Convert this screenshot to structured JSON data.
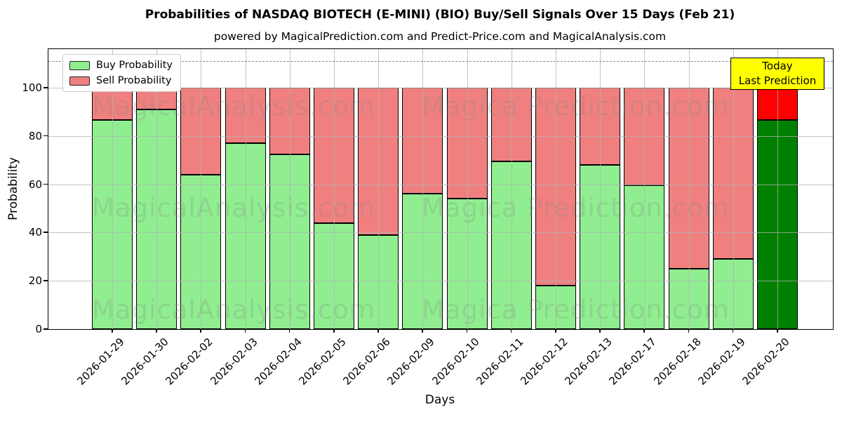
{
  "chart_data": {
    "type": "bar",
    "stacked": true,
    "title": "Probabilities of NASDAQ BIOTECH (E-MINI) (BIO) Buy/Sell Signals Over 15 Days (Feb 21)",
    "subtitle": "powered by MagicalPrediction.com and Predict-Price.com and MagicalAnalysis.com",
    "xlabel": "Days",
    "ylabel": "Probability",
    "categories": [
      "2026-01-29",
      "2026-01-30",
      "2026-02-02",
      "2026-02-03",
      "2026-02-04",
      "2026-02-05",
      "2026-02-06",
      "2026-02-09",
      "2026-02-10",
      "2026-02-11",
      "2026-02-12",
      "2026-02-13",
      "2026-02-17",
      "2026-02-18",
      "2026-02-19",
      "2026-02-20"
    ],
    "series": [
      {
        "name": "Buy Probability",
        "color": "#90ee90",
        "values": [
          86.5,
          91,
          64,
          77,
          72.5,
          44,
          39,
          56,
          54,
          69.5,
          18,
          68,
          59.5,
          25,
          29,
          86.5
        ]
      },
      {
        "name": "Sell Probability",
        "color": "#f08080",
        "values": [
          13.5,
          9,
          36,
          23,
          27.5,
          56,
          61,
          44,
          46,
          30.5,
          82,
          32,
          40.5,
          75,
          71,
          13.5
        ]
      }
    ],
    "today_index": 15,
    "today_colors": {
      "buy": "#008000",
      "sell": "#ff0000"
    },
    "ylim": [
      0,
      116
    ],
    "yticks": [
      0,
      20,
      40,
      60,
      80,
      100
    ],
    "dashed_line_y": 111,
    "grid": true,
    "legend_position": "upper left"
  },
  "legend": {
    "items": [
      {
        "label": "Buy Probability",
        "color": "#90ee90"
      },
      {
        "label": "Sell Probability",
        "color": "#f08080"
      }
    ]
  },
  "annotation": {
    "line1": "Today",
    "line2": "Last Prediction",
    "bg": "#ffff00"
  },
  "watermarks": {
    "left": "MagicalAnalysis.com",
    "right": "Magica Prediction.com"
  },
  "colors": {
    "buy_bar": "#90ee90",
    "sell_bar": "#f08080",
    "today_buy_bar": "#008000",
    "today_sell_bar": "#ff0000",
    "bar_edge": "#000000",
    "grid": "#b0b0b0",
    "dashed_line": "#8a8a8a",
    "annotation_bg": "#ffff00"
  }
}
